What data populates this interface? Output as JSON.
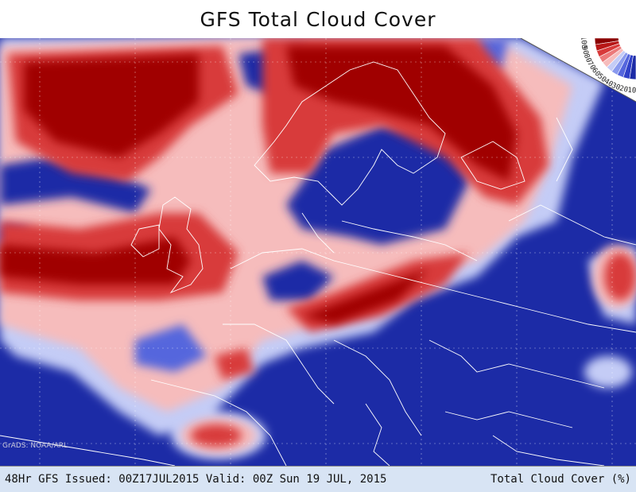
{
  "title": "GFS Total Cloud Cover",
  "footer": {
    "issued": "48Hr GFS Issued: 00Z17JUL2015 Valid: 00Z Sun 19 JUL, 2015",
    "variable": "Total Cloud Cover (%)"
  },
  "credit": "GrADS: NOAA/ARL",
  "legend": {
    "labels": [
      "100",
      "90",
      "80",
      "70",
      "60",
      "50",
      "40",
      "30",
      "20",
      "10"
    ],
    "colors": [
      "#8b0000",
      "#b81616",
      "#d83a3a",
      "#ec7a7a",
      "#f6bcbc",
      "#c4ccf6",
      "#8a9aee",
      "#5566dd",
      "#3040c8",
      "#1c2ba6"
    ]
  },
  "map_colors": {
    "clear": "#1c2ba6",
    "low": "#5566dd",
    "lowmid": "#c4ccf6",
    "mid": "#f6bcbc",
    "high": "#d83a3a",
    "overcast": "#a00000",
    "border": "#ffffff"
  }
}
